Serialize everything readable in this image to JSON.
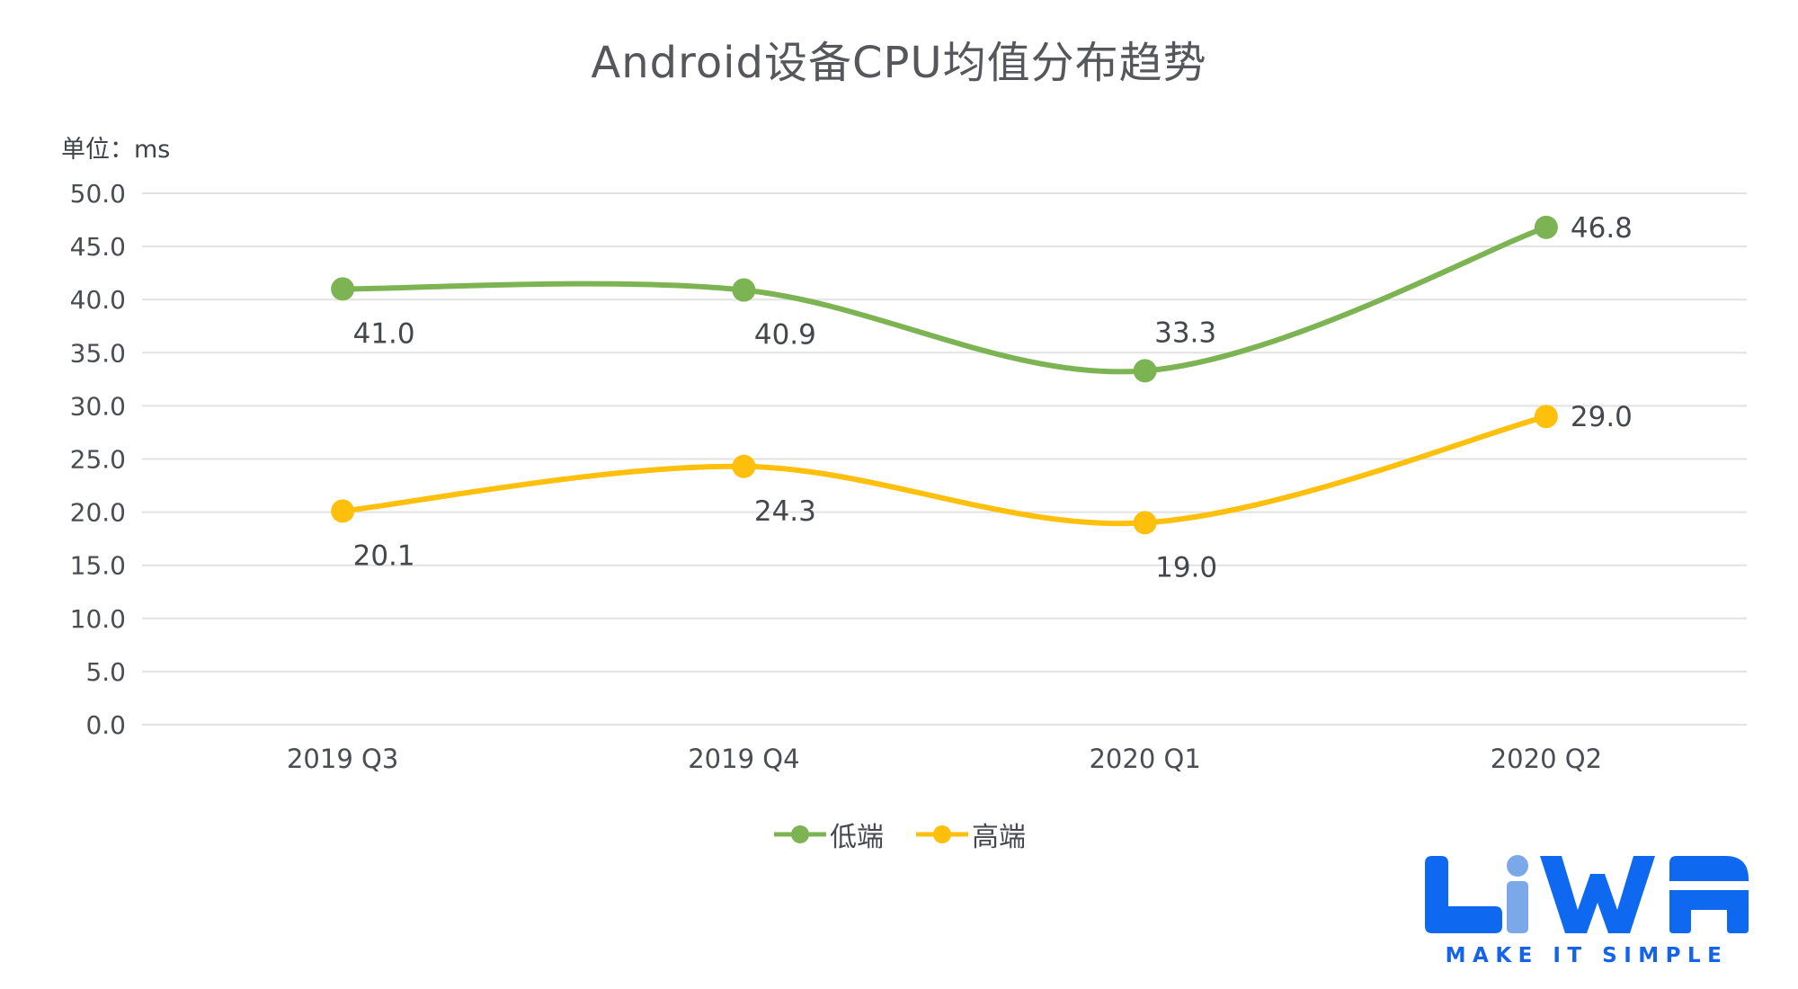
{
  "title": "Android设备CPU均值分布趋势",
  "unit_label": "单位：ms",
  "chart_data": {
    "type": "line",
    "smooth": true,
    "grid": true,
    "legend_position": "bottom",
    "categories": [
      "2019 Q3",
      "2019 Q4",
      "2020 Q1",
      "2020 Q2"
    ],
    "series": [
      {
        "name": "低端",
        "color": "#7db453",
        "values": [
          41.0,
          40.9,
          33.3,
          46.8
        ],
        "label_positions": [
          "below",
          "below",
          "above",
          "right"
        ]
      },
      {
        "name": "高端",
        "color": "#ffc00d",
        "values": [
          20.1,
          24.3,
          19.0,
          29.0
        ],
        "label_positions": [
          "below",
          "below",
          "below",
          "right"
        ]
      }
    ],
    "ylabel": "单位：ms",
    "ylim": [
      0,
      50
    ],
    "ytick_step": 5,
    "tick_color": "#4a4e53",
    "data_label_color": "#44474b",
    "gridline_color": "#e2e2e2"
  },
  "logo": {
    "text": "LiWA",
    "tagline": "MAKE IT SIMPLE",
    "color": "#0f69f0",
    "light_color": "#7aa8e8"
  }
}
